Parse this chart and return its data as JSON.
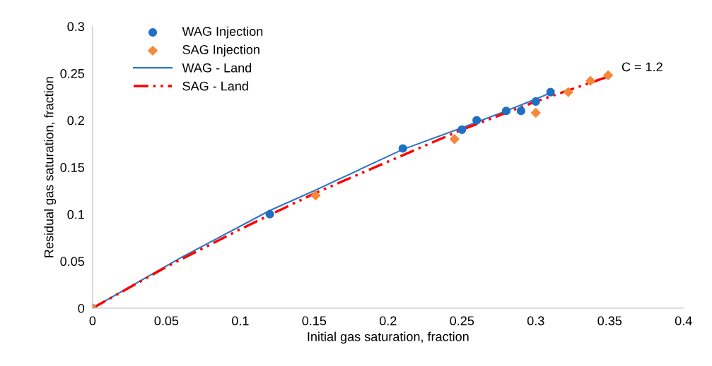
{
  "chart_data": {
    "type": "scatter",
    "xlabel": "Initial gas saturation, fraction",
    "ylabel": "Residual gas saturation, fraction",
    "xlim": [
      0,
      0.4
    ],
    "ylim": [
      0,
      0.3
    ],
    "xticks": [
      0,
      0.05,
      0.1,
      0.15,
      0.2,
      0.25,
      0.3,
      0.35,
      0.4
    ],
    "yticks": [
      0,
      0.05,
      0.1,
      0.15,
      0.2,
      0.25,
      0.3
    ],
    "grid": false,
    "legend": "top left",
    "annotations": [
      {
        "text": "C = 1.2",
        "x": 0.35,
        "y": 0.248
      }
    ],
    "series": [
      {
        "name": "WAG Injection",
        "marker": "circle",
        "color": "#1f6fc5",
        "x": [
          0,
          0.12,
          0.21,
          0.25,
          0.26,
          0.28,
          0.29,
          0.3,
          0.31
        ],
        "values": [
          0,
          0.1,
          0.17,
          0.19,
          0.2,
          0.21,
          0.21,
          0.22,
          0.23
        ]
      },
      {
        "name": "SAG Injection",
        "marker": "diamond",
        "color": "#f5883a",
        "x": [
          0,
          0.151,
          0.245,
          0.3,
          0.322,
          0.337,
          0.349
        ],
        "values": [
          0,
          0.12,
          0.18,
          0.208,
          0.23,
          0.242,
          0.248
        ]
      },
      {
        "name": "WAG - Land",
        "type": "line",
        "line_style": "solid",
        "color": "#2e75c8",
        "x": [
          0,
          0.06,
          0.12,
          0.15,
          0.21,
          0.25,
          0.28,
          0.31
        ],
        "values": [
          0,
          0.054,
          0.104,
          0.125,
          0.169,
          0.192,
          0.21,
          0.229
        ]
      },
      {
        "name": "SAG - Land",
        "type": "line",
        "line_style": "dashed",
        "color": "#ff0000",
        "x": [
          0,
          0.05,
          0.1,
          0.15,
          0.2,
          0.25,
          0.3,
          0.35
        ],
        "values": [
          0,
          0.044,
          0.084,
          0.122,
          0.156,
          0.19,
          0.22,
          0.247
        ]
      }
    ]
  }
}
